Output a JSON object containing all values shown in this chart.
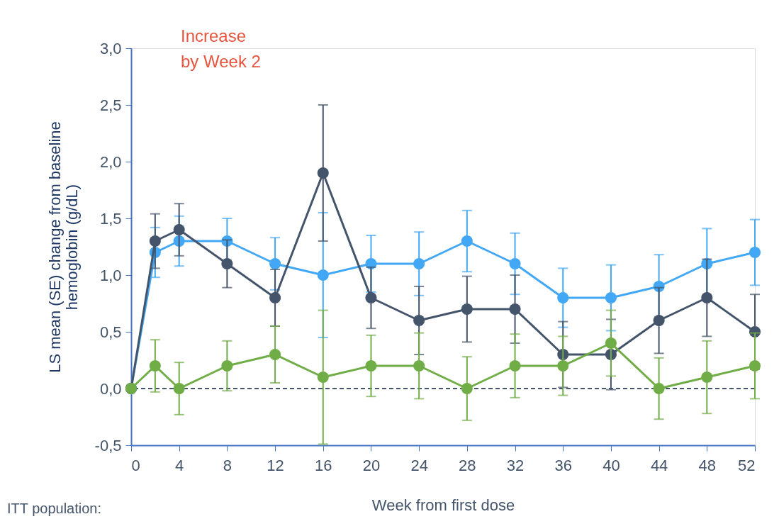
{
  "chart_data": {
    "type": "line",
    "xlabel": "Week from first dose",
    "ylabel": "LS mean (SE) change from baseline\nhemoglobin (g/dL)",
    "x": [
      0,
      2,
      4,
      8,
      12,
      16,
      20,
      24,
      28,
      32,
      36,
      40,
      44,
      48,
      52
    ],
    "xlim": [
      0,
      52
    ],
    "xticks": [
      0,
      4,
      8,
      12,
      16,
      20,
      24,
      28,
      32,
      36,
      40,
      44,
      48,
      52
    ],
    "ylim": [
      -0.5,
      3.0
    ],
    "yticks": [
      {
        "value": -0.5,
        "label": "-0,5"
      },
      {
        "value": 0,
        "label": "0,0"
      },
      {
        "value": 0.5,
        "label": "0,5"
      },
      {
        "value": 1.0,
        "label": "1,0"
      },
      {
        "value": 1.5,
        "label": "1,5"
      },
      {
        "value": 2.0,
        "label": "2,0"
      },
      {
        "value": 2.5,
        "label": "2,5"
      },
      {
        "value": 3.0,
        "label": "3,0"
      }
    ],
    "series": [
      {
        "color": "#42a8f5",
        "values": [
          0,
          1.2,
          1.3,
          1.3,
          1.1,
          1.0,
          1.1,
          1.1,
          1.3,
          1.1,
          0.8,
          0.8,
          0.9,
          1.1,
          1.2
        ],
        "errors": [
          null,
          0.22,
          0.22,
          0.2,
          0.23,
          0.55,
          0.25,
          0.28,
          0.27,
          0.27,
          0.26,
          0.29,
          0.28,
          0.31,
          0.29
        ]
      },
      {
        "color": "#44546a",
        "values": [
          0,
          1.3,
          1.4,
          1.1,
          0.8,
          1.9,
          0.8,
          0.6,
          0.7,
          0.7,
          0.3,
          0.3,
          0.6,
          0.8,
          0.5
        ],
        "errors": [
          null,
          0.24,
          0.23,
          0.21,
          0.25,
          0.6,
          0.27,
          0.3,
          0.29,
          0.3,
          0.29,
          0.31,
          0.29,
          0.34,
          0.33
        ]
      },
      {
        "color": "#70ad47",
        "values": [
          0,
          0.2,
          0,
          0.2,
          0.3,
          0.1,
          0.2,
          0.2,
          0,
          0.2,
          0.2,
          0.4,
          0,
          0.1,
          0.2
        ],
        "errors": [
          null,
          0.23,
          0.23,
          0.22,
          0.25,
          0.59,
          0.27,
          0.29,
          0.28,
          0.28,
          0.26,
          0.29,
          0.27,
          0.32,
          0.29
        ]
      }
    ],
    "marker": "circle",
    "line_style": "solid",
    "grid": false,
    "ref_lines": [
      {
        "axis": "y",
        "value": 0,
        "color": "#44546a",
        "line_style": "dashed"
      }
    ],
    "annotations": [
      "Increase\nby Week 2",
      "ITT population:"
    ]
  }
}
